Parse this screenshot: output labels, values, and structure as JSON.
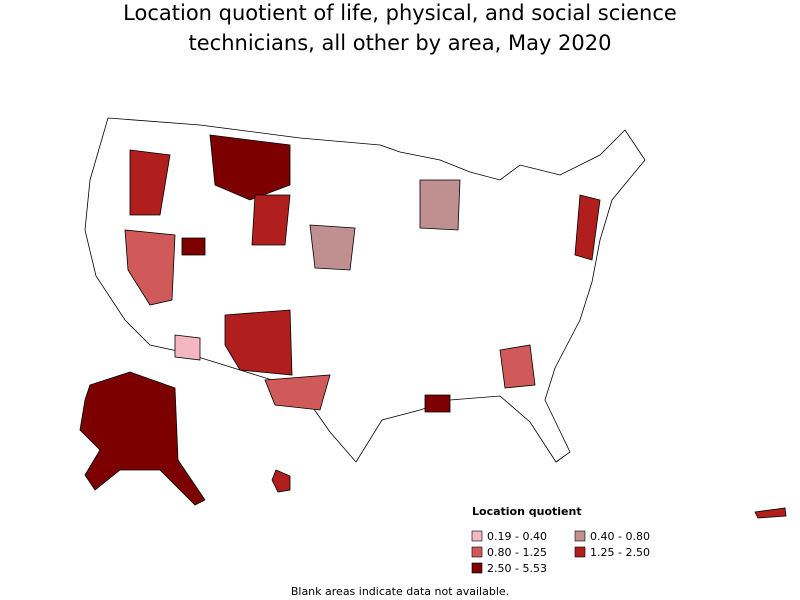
{
  "header": {
    "title_lines": [
      "Location quotient of life, physical, and social science",
      "technicians, all other by area, May 2020"
    ]
  },
  "legend": {
    "title": "Location quotient",
    "items": [
      {
        "label": "0.19 - 0.40",
        "color": "#f4b6c0"
      },
      {
        "label": "0.40 - 0.80",
        "color": "#c08f8f"
      },
      {
        "label": "0.80 - 1.25",
        "color": "#d05a5a"
      },
      {
        "label": "1.25 - 2.50",
        "color": "#b01e1e"
      },
      {
        "label": "2.50 - 5.53",
        "color": "#7d0000"
      }
    ]
  },
  "footnote": "Blank areas indicate data not available."
}
